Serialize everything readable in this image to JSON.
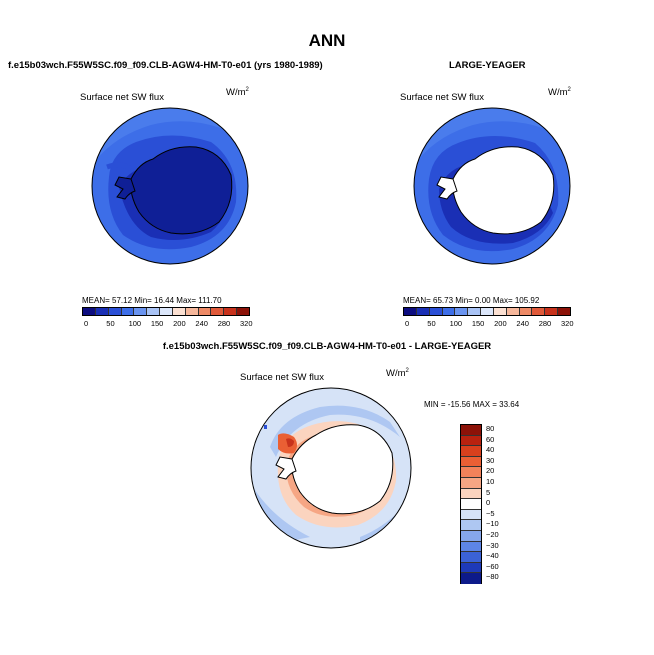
{
  "page": {
    "title": "ANN"
  },
  "panel_left": {
    "title": "f.e15b03wch.F55W5SC.f09_f09.CLB-AGW4-HM-T0-e01 (yrs 1980-1989)",
    "variable": "Surface net SW flux",
    "unit_base": "W/m",
    "unit_exp": "2",
    "stats": "MEAN=   57.12  Min=   16.44  Max=  111.70"
  },
  "panel_right": {
    "title": "LARGE-YEAGER",
    "variable": "Surface net SW flux",
    "unit_base": "W/m",
    "unit_exp": "2",
    "stats": "MEAN=   65.73  Min=    0.00  Max=  105.92"
  },
  "panel_diff": {
    "title": "f.e15b03wch.F55W5SC.f09_f09.CLB-AGW4-HM-T0-e01 - LARGE-YEAGER",
    "variable": "Surface net SW flux",
    "unit_base": "W/m",
    "unit_exp": "2",
    "stats": "MIN = -15.56 MAX =  33.64"
  },
  "colorbar_abs": {
    "colors": [
      "#0d0d80",
      "#1a2fb5",
      "#2a4fd6",
      "#3d6ee8",
      "#6a94f0",
      "#a9c3f5",
      "#dbe6fa",
      "#fbe0d2",
      "#f6b79b",
      "#ee8a66",
      "#e05a3a",
      "#c8321c",
      "#8c1208"
    ],
    "labels": [
      "0",
      "50",
      "100",
      "150",
      "200",
      "240",
      "280",
      "320"
    ]
  },
  "colorbar_diff": {
    "colors": [
      "#8c1208",
      "#b8220f",
      "#d8401d",
      "#ea5f34",
      "#f2825a",
      "#f6a684",
      "#fbd4bf",
      "#ffffff",
      "#d6e3f7",
      "#aec7f2",
      "#86a7ec",
      "#5d85e6",
      "#3b62d6",
      "#1e3ab8",
      "#0d1a8a"
    ],
    "labels": [
      "80",
      "60",
      "40",
      "30",
      "20",
      "10",
      "5",
      "0",
      "−5",
      "−10",
      "−20",
      "−30",
      "−40",
      "−60",
      "−80"
    ]
  }
}
